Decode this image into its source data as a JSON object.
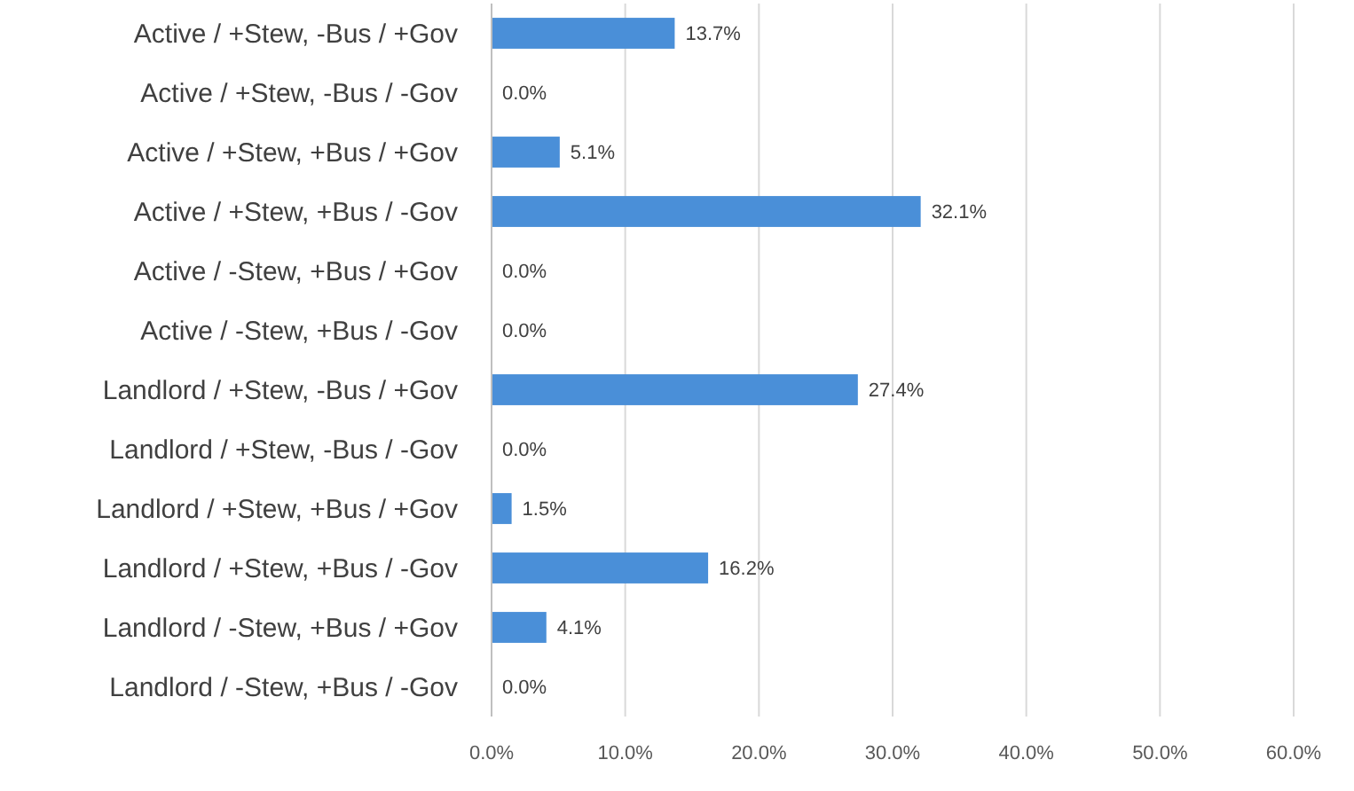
{
  "chart_data": {
    "type": "bar",
    "orientation": "horizontal",
    "categories": [
      "Active / +Stew, -Bus / +Gov",
      "Active / +Stew, -Bus / -Gov",
      "Active / +Stew, +Bus / +Gov",
      "Active / +Stew, +Bus / -Gov",
      "Active / -Stew, +Bus / +Gov",
      "Active / -Stew, +Bus / -Gov",
      "Landlord / +Stew, -Bus / +Gov",
      "Landlord / +Stew, -Bus / -Gov",
      "Landlord / +Stew, +Bus / +Gov",
      "Landlord / +Stew, +Bus / -Gov",
      "Landlord / -Stew, +Bus / +Gov",
      "Landlord / -Stew, +Bus / -Gov"
    ],
    "values": [
      13.7,
      0,
      5.1,
      32.1,
      0,
      0,
      27.4,
      0,
      1.5,
      16.2,
      4.1,
      0
    ],
    "value_labels": [
      "13.7%",
      "0.0%",
      "5.1%",
      "32.1%",
      "0.0%",
      "0.0%",
      "27.4%",
      "0.0%",
      "1.5%",
      "16.2%",
      "4.1%",
      "0.0%"
    ],
    "color": "#4a8fd8",
    "xlim": [
      0,
      60
    ],
    "xticks": [
      {
        "value": 0,
        "label": "0.0%"
      },
      {
        "value": 10,
        "label": "10.0%"
      },
      {
        "value": 20,
        "label": "20.0%"
      },
      {
        "value": 30,
        "label": "30.0%"
      },
      {
        "value": 40,
        "label": "40.0%"
      },
      {
        "value": 50,
        "label": "50.0%"
      },
      {
        "value": 60,
        "label": "60.0%"
      }
    ],
    "grid": "x"
  }
}
